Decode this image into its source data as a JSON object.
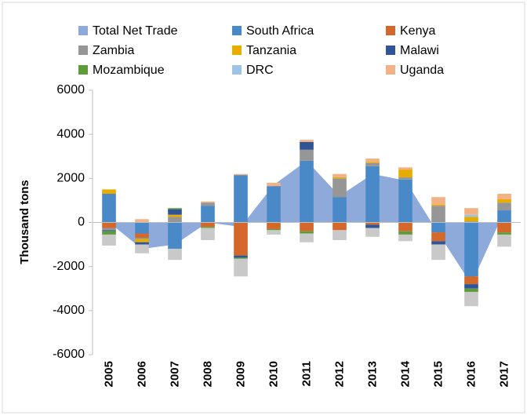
{
  "chart_data": {
    "type": "bar",
    "y_label": "Thousand tons",
    "categories": [
      "2005",
      "2006",
      "2007",
      "2008",
      "2009",
      "2010",
      "2011",
      "2012",
      "2013",
      "2014",
      "2015",
      "2016",
      "2017"
    ],
    "ylim": [
      -6000,
      6000
    ],
    "yticks": [
      -6000,
      -4000,
      -2000,
      0,
      2000,
      4000,
      6000
    ],
    "series": [
      {
        "name": "Total Net Trade",
        "type": "area",
        "color": "#8eaadb",
        "values": [
          0,
          -1200,
          -1000,
          0,
          -200,
          1700,
          2800,
          1200,
          2200,
          1900,
          -500,
          -2800,
          500
        ]
      },
      {
        "name": "South Africa",
        "color": "#4a89c8",
        "values": [
          1300,
          -500,
          -1200,
          750,
          2150,
          1650,
          2800,
          1150,
          2550,
          1950,
          -450,
          -2450,
          550
        ]
      },
      {
        "name": "Kenya",
        "color": "#d4672a",
        "values": [
          -250,
          -200,
          0,
          -200,
          -1500,
          -300,
          -400,
          -350,
          -100,
          -400,
          -400,
          -350,
          -450
        ]
      },
      {
        "name": "Zambia",
        "color": "#969696",
        "values": [
          -100,
          -50,
          250,
          150,
          0,
          0,
          500,
          850,
          150,
          100,
          750,
          50,
          350
        ]
      },
      {
        "name": "Tanzania",
        "color": "#e6ac00",
        "values": [
          200,
          -150,
          100,
          0,
          0,
          0,
          0,
          50,
          50,
          350,
          50,
          200,
          150
        ]
      },
      {
        "name": "Malawi",
        "color": "#2f5597",
        "values": [
          -50,
          -100,
          250,
          0,
          -100,
          0,
          350,
          0,
          -150,
          0,
          -150,
          -200,
          0
        ]
      },
      {
        "name": "Mozambique",
        "color": "#5e9c3a",
        "values": [
          -150,
          0,
          50,
          -50,
          -50,
          -50,
          -100,
          0,
          0,
          -150,
          0,
          -150,
          -100
        ]
      },
      {
        "name": "DRC",
        "color": "#9dc3e6",
        "values": [
          0,
          0,
          0,
          0,
          0,
          0,
          0,
          0,
          0,
          0,
          0,
          100,
          0
        ]
      },
      {
        "name": "Uganda",
        "color": "#f4b183",
        "values": [
          0,
          150,
          0,
          50,
          50,
          150,
          100,
          150,
          150,
          100,
          350,
          300,
          250
        ]
      },
      {
        "name": null,
        "color": "#c9c9c9",
        "values": [
          -500,
          -400,
          -500,
          -550,
          -800,
          -200,
          -400,
          -450,
          -400,
          -300,
          -700,
          -650,
          -550
        ]
      }
    ]
  }
}
